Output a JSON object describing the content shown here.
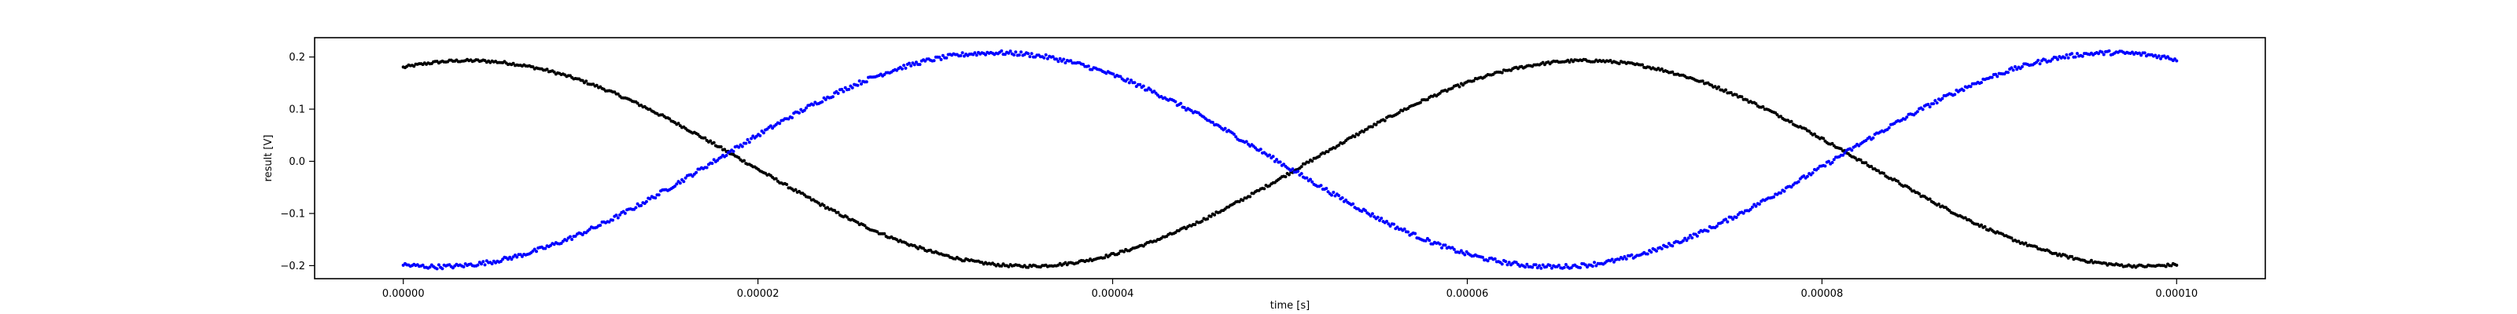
{
  "chart_data": {
    "type": "scatter",
    "title": "",
    "xlabel": "time [s]",
    "ylabel": "result [V]",
    "xlim": [
      -5e-06,
      0.000105
    ],
    "ylim": [
      -0.225,
      0.237
    ],
    "x_ticks": [
      0.0,
      2e-05,
      4e-05,
      6e-05,
      8e-05,
      0.0001
    ],
    "x_tick_labels": [
      "0.00000",
      "0.00002",
      "0.00004",
      "0.00006",
      "0.00008",
      "0.00010"
    ],
    "y_ticks": [
      -0.2,
      -0.1,
      0.0,
      0.1,
      0.2
    ],
    "y_tick_labels": [
      "−0.2",
      "−0.1",
      "0.0",
      "0.1",
      "0.2"
    ],
    "grid": false,
    "legend": "none",
    "x_range": [
      0.0,
      0.0001
    ],
    "samples_per_series": 1000,
    "series": [
      {
        "color": "#000000",
        "form": "sine",
        "amplitude": 0.197,
        "period": 6.3e-05,
        "phase_at_zero_deg": 69,
        "offset": -0.004,
        "noise": 0.0025,
        "key_points": [
          {
            "x": 0.0,
            "y": 0.183
          },
          {
            "x": 4e-06,
            "y": 0.193
          },
          {
            "x": 1e-05,
            "y": 0.165
          },
          {
            "x": 1.7e-05,
            "y": 0.03
          },
          {
            "x": 2.5e-05,
            "y": -0.13
          },
          {
            "x": 3.5e-05,
            "y": -0.2
          },
          {
            "x": 4.5e-05,
            "y": -0.13
          },
          {
            "x": 5e-05,
            "y": -0.03
          },
          {
            "x": 5.8e-05,
            "y": 0.13
          },
          {
            "x": 6.6e-05,
            "y": 0.193
          },
          {
            "x": 7.5e-05,
            "y": 0.13
          },
          {
            "x": 8e-05,
            "y": 0.025
          },
          {
            "x": 9e-05,
            "y": -0.16
          },
          {
            "x": 9.7e-05,
            "y": -0.2
          },
          {
            "x": 0.0001,
            "y": -0.196
          }
        ]
      },
      {
        "color": "#0000ff",
        "form": "sine",
        "amplitude": 0.205,
        "period": 6.3e-05,
        "phase_at_zero_deg": 259,
        "offset": 0.003,
        "noise": 0.004,
        "key_points": [
          {
            "x": 0.0,
            "y": -0.19
          },
          {
            "x": 5e-06,
            "y": -0.19
          },
          {
            "x": 1e-05,
            "y": -0.14
          },
          {
            "x": 1.7e-05,
            "y": 0.02
          },
          {
            "x": 2.5e-05,
            "y": 0.17
          },
          {
            "x": 3.2e-05,
            "y": 0.208
          },
          {
            "x": 4e-05,
            "y": 0.15
          },
          {
            "x": 4.8e-05,
            "y": -0.02
          },
          {
            "x": 5.5e-05,
            "y": -0.16
          },
          {
            "x": 6.3e-05,
            "y": -0.2
          },
          {
            "x": 7e-05,
            "y": -0.15
          },
          {
            "x": 8e-05,
            "y": 0.03
          },
          {
            "x": 8.8e-05,
            "y": 0.17
          },
          {
            "x": 9.5e-05,
            "y": 0.21
          },
          {
            "x": 0.0001,
            "y": 0.177
          }
        ]
      }
    ]
  }
}
